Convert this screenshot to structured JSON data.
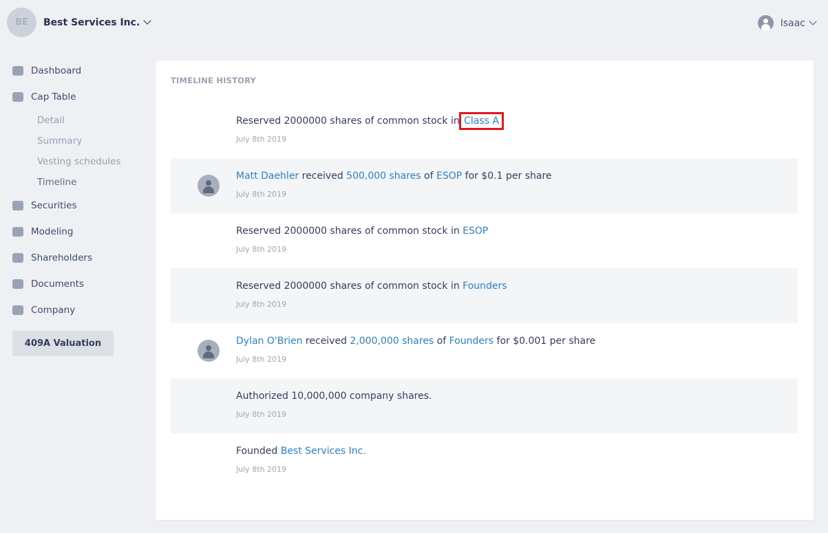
{
  "org": {
    "initials": "BE",
    "name": "Best Services Inc."
  },
  "user": {
    "name": "Isaac"
  },
  "sidebar": {
    "items": [
      {
        "label": "Dashboard",
        "icon": "dashboard-icon"
      },
      {
        "label": "Cap Table",
        "icon": "pie-chart-icon",
        "children": [
          "Detail",
          "Summary",
          "Vesting schedules",
          "Timeline"
        ]
      },
      {
        "label": "Securities",
        "icon": "clipboard-icon"
      },
      {
        "label": "Modeling",
        "icon": "lightbulb-dollar-icon"
      },
      {
        "label": "Shareholders",
        "icon": "person-icon"
      },
      {
        "label": "Documents",
        "icon": "folder-lock-icon"
      },
      {
        "label": "Company",
        "icon": "company-icon"
      }
    ],
    "active_sub": "Timeline",
    "valuation_button": "409A Valuation"
  },
  "timeline": {
    "title": "TIMELINE HISTORY",
    "entries": [
      {
        "avatar": false,
        "date": "July 8th 2019",
        "parts": [
          {
            "t": "Reserved 2000000 shares of common stock in "
          },
          {
            "t": "Class A",
            "link": true,
            "highlight": true
          }
        ]
      },
      {
        "avatar": true,
        "date": "July 8th 2019",
        "parts": [
          {
            "t": "Matt Daehler",
            "link": true
          },
          {
            "t": " received "
          },
          {
            "t": "500,000 shares",
            "link": true
          },
          {
            "t": " of "
          },
          {
            "t": "ESOP",
            "link": true
          },
          {
            "t": " for $0.1 per share"
          }
        ]
      },
      {
        "avatar": false,
        "date": "July 8th 2019",
        "parts": [
          {
            "t": "Reserved 2000000 shares of common stock in "
          },
          {
            "t": "ESOP",
            "link": true
          }
        ]
      },
      {
        "avatar": false,
        "date": "July 8th 2019",
        "parts": [
          {
            "t": "Reserved 2000000 shares of common stock in "
          },
          {
            "t": "Founders",
            "link": true
          }
        ]
      },
      {
        "avatar": true,
        "date": "July 8th 2019",
        "parts": [
          {
            "t": "Dylan O'Brien",
            "link": true
          },
          {
            "t": " received "
          },
          {
            "t": "2,000,000 shares",
            "link": true
          },
          {
            "t": " of "
          },
          {
            "t": "Founders",
            "link": true
          },
          {
            "t": " for $0.001 per share"
          }
        ]
      },
      {
        "avatar": false,
        "date": "July 8th 2019",
        "parts": [
          {
            "t": "Authorized 10,000,000 company shares."
          }
        ]
      },
      {
        "avatar": false,
        "date": "July 8th 2019",
        "parts": [
          {
            "t": "Founded "
          },
          {
            "t": "Best Services Inc.",
            "link": true
          }
        ]
      }
    ]
  },
  "colors": {
    "link": "#2d7fc1",
    "highlight": "#e5141e",
    "background": "#eef0f4"
  }
}
